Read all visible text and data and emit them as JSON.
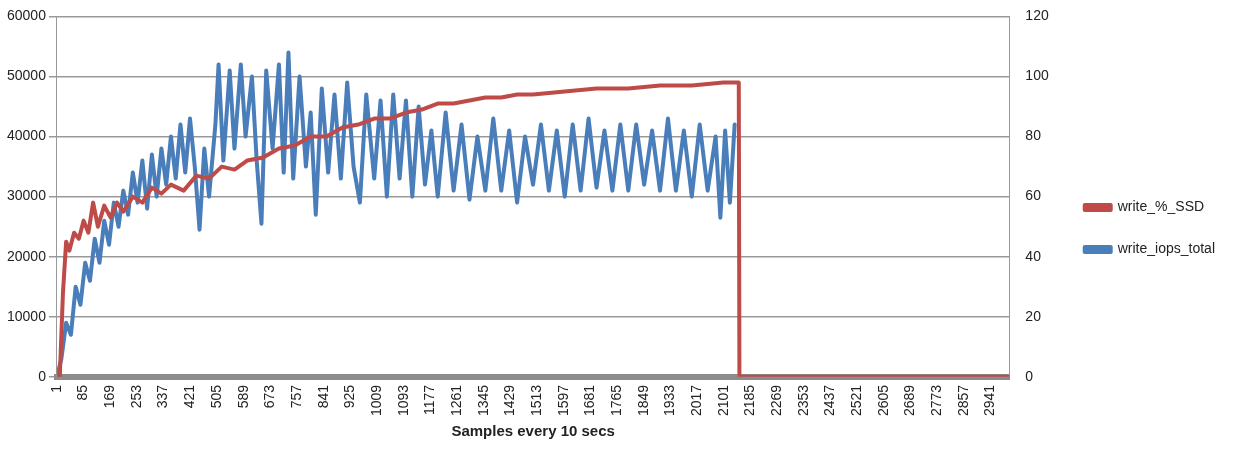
{
  "chart_data": {
    "type": "line",
    "xlabel": "Samples every 10 secs",
    "xlim": [
      1,
      3000
    ],
    "xticks": [
      1,
      85,
      169,
      253,
      337,
      421,
      505,
      589,
      673,
      757,
      841,
      925,
      1009,
      1093,
      1177,
      1261,
      1345,
      1429,
      1513,
      1597,
      1681,
      1765,
      1849,
      1933,
      2017,
      2101,
      2185,
      2269,
      2353,
      2437,
      2521,
      2605,
      2689,
      2773,
      2857,
      2941
    ],
    "ylim": [
      0,
      60000
    ],
    "yticks": [
      0,
      10000,
      20000,
      30000,
      40000,
      50000,
      60000
    ],
    "y2lim": [
      0,
      120
    ],
    "y2ticks": [
      0,
      20,
      40,
      60,
      80,
      100,
      120
    ],
    "grid": "y",
    "legend": "right",
    "marker": "none",
    "line_style": "solid",
    "series": [
      {
        "name": "write_iops_total",
        "color": "#4a7ebb",
        "x": [
          1,
          15,
          30,
          45,
          60,
          75,
          90,
          105,
          120,
          135,
          150,
          165,
          180,
          195,
          210,
          225,
          240,
          255,
          270,
          285,
          300,
          315,
          330,
          345,
          360,
          375,
          390,
          405,
          420,
          435,
          450,
          465,
          480,
          500,
          510,
          525,
          545,
          560,
          580,
          595,
          615,
          630,
          645,
          660,
          680,
          700,
          715,
          730,
          745,
          765,
          785,
          800,
          816,
          835,
          855,
          875,
          895,
          915,
          935,
          955,
          975,
          1000,
          1020,
          1040,
          1060,
          1080,
          1100,
          1120,
          1140,
          1160,
          1180,
          1200,
          1225,
          1250,
          1275,
          1300,
          1325,
          1350,
          1375,
          1400,
          1425,
          1450,
          1475,
          1500,
          1525,
          1550,
          1575,
          1600,
          1625,
          1650,
          1675,
          1700,
          1725,
          1750,
          1775,
          1800,
          1825,
          1850,
          1875,
          1900,
          1925,
          1950,
          1975,
          2000,
          2025,
          2050,
          2075,
          2090,
          2105,
          2120,
          2135
        ],
        "values": [
          0,
          3000,
          9000,
          7000,
          15000,
          12000,
          19000,
          16000,
          23000,
          19000,
          26000,
          22000,
          29000,
          25000,
          31000,
          27000,
          34000,
          29000,
          36000,
          28000,
          37000,
          30000,
          38000,
          32000,
          40000,
          33000,
          42000,
          34000,
          43000,
          35000,
          24500,
          38000,
          30000,
          42000,
          52000,
          36000,
          51000,
          38000,
          52000,
          40000,
          50000,
          36000,
          25500,
          51000,
          38000,
          52000,
          34000,
          54000,
          33000,
          50000,
          35000,
          44000,
          27000,
          48000,
          34000,
          47000,
          33000,
          49000,
          35000,
          29000,
          47000,
          33000,
          46000,
          30000,
          47000,
          33000,
          46000,
          30000,
          45000,
          32000,
          41000,
          30000,
          44000,
          31000,
          42000,
          29500,
          40000,
          31000,
          43000,
          31000,
          41000,
          29000,
          40000,
          32000,
          42000,
          31000,
          41000,
          30000,
          42000,
          31000,
          43000,
          31500,
          41000,
          31000,
          42000,
          31000,
          42000,
          32000,
          41000,
          31000,
          43000,
          31000,
          41000,
          30000,
          42000,
          31000,
          40000,
          26500,
          41000,
          29000,
          42000
        ]
      },
      {
        "name": "write_%_SSD",
        "color": "#be4b48",
        "axis": "y2",
        "x": [
          1,
          10,
          20,
          30,
          40,
          55,
          70,
          85,
          100,
          115,
          130,
          150,
          170,
          190,
          210,
          240,
          270,
          300,
          330,
          360,
          400,
          440,
          480,
          520,
          560,
          600,
          650,
          700,
          750,
          800,
          850,
          900,
          950,
          1000,
          1050,
          1100,
          1150,
          1200,
          1250,
          1300,
          1350,
          1400,
          1450,
          1500,
          1600,
          1700,
          1800,
          1900,
          2000,
          2100,
          2148,
          2150,
          3000
        ],
        "values": [
          0,
          0,
          28,
          45,
          42,
          48,
          46,
          52,
          48,
          58,
          50,
          57,
          53,
          58,
          55,
          60,
          58,
          63,
          61,
          64,
          62,
          67,
          66,
          70,
          69,
          72,
          73,
          76,
          77,
          80,
          80,
          83,
          84,
          86,
          86,
          88,
          89,
          91,
          91,
          92,
          93,
          93,
          94,
          94,
          95,
          96,
          96,
          97,
          97,
          98,
          98,
          0,
          0
        ]
      }
    ]
  }
}
